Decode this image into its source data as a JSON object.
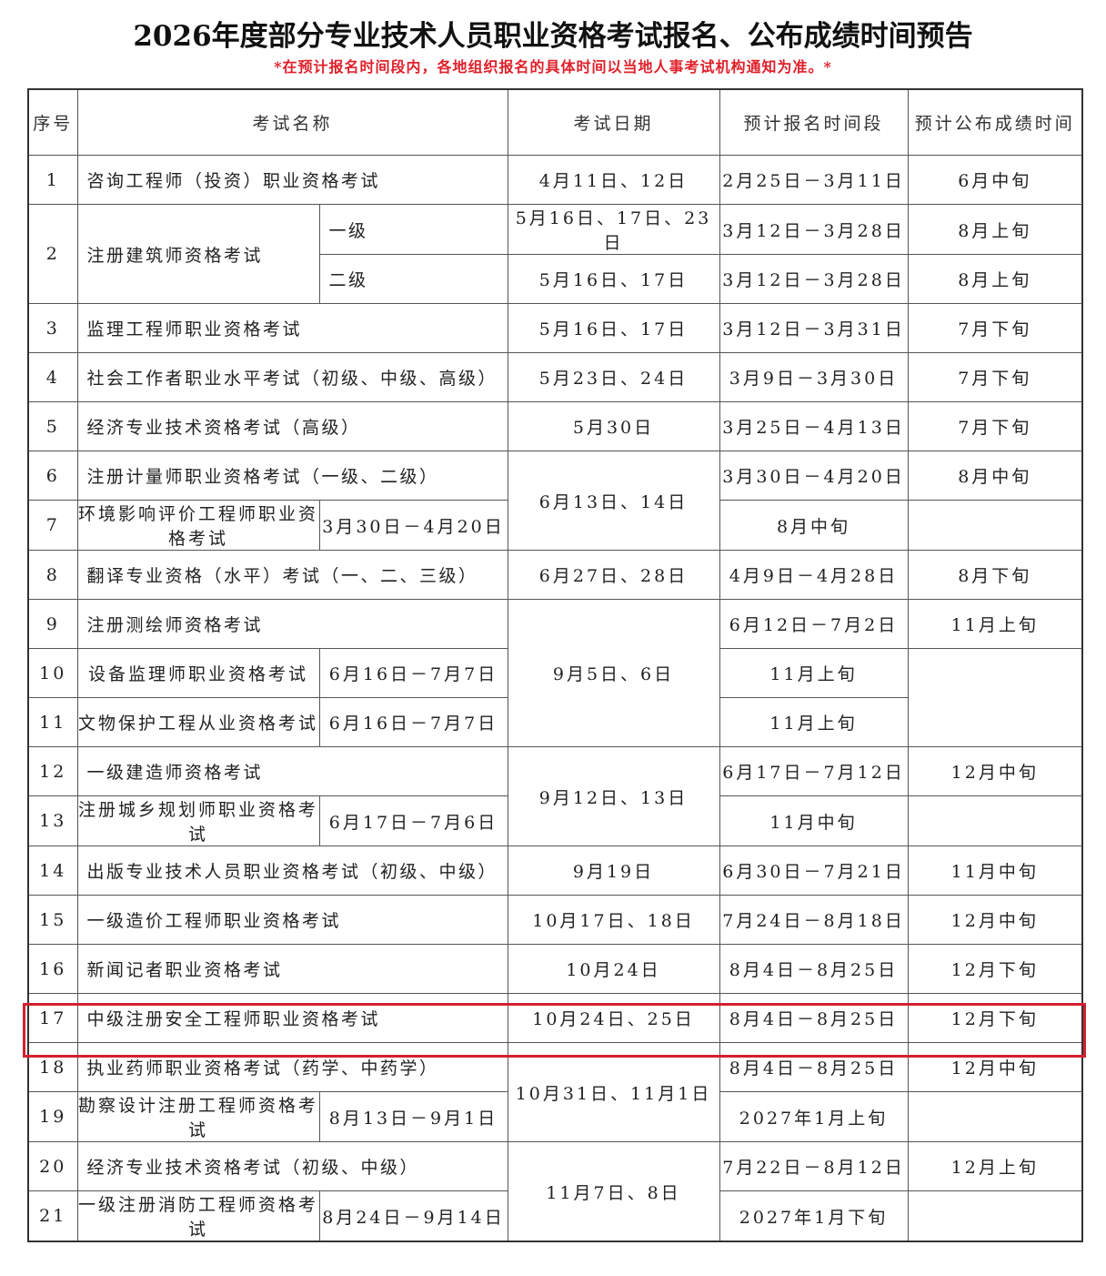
{
  "title": "2026年度部分专业技术人员职业资格考试报名、公布成绩时间预告",
  "note": "*在预计报名时间段内，各地组织报名的具体时间以当地人事考试机构通知为准。*",
  "table": {
    "headers": [
      "序号",
      "考试名称",
      "考试日期",
      "预计报名时间段",
      "预计公布成绩时间"
    ],
    "rows": [
      [
        "1",
        "咨询工程师（投资）职业资格考试",
        "4月11日、12日",
        "2月25日－3月11日",
        "6月中旬"
      ],
      [
        "2",
        "注册建筑师资格考试",
        "一级",
        "5月16日、17日、23日",
        "3月12日－3月28日",
        "8月上旬"
      ],
      [
        "二级",
        "5月16日、17日",
        "3月12日－3月28日",
        "8月上旬"
      ],
      [
        "3",
        "监理工程师职业资格考试",
        "5月16日、17日",
        "3月12日－3月31日",
        "7月下旬"
      ],
      [
        "4",
        "社会工作者职业水平考试（初级、中级、高级）",
        "5月23日、24日",
        "3月9日－3月30日",
        "7月下旬"
      ],
      [
        "5",
        "经济专业技术资格考试（高级）",
        "5月30日",
        "3月25日－4月13日",
        "7月下旬"
      ],
      [
        "6",
        "注册计量师职业资格考试（一级、二级）",
        "6月13日、14日",
        "3月30日－4月20日",
        "8月中旬"
      ],
      [
        "7",
        "环境影响评价工程师职业资格考试",
        "3月30日－4月20日",
        "8月中旬"
      ],
      [
        "8",
        "翻译专业资格（水平）考试（一、二、三级）",
        "6月27日、28日",
        "4月9日－4月28日",
        "8月下旬"
      ],
      [
        "9",
        "注册测绘师资格考试",
        "9月5日、6日",
        "6月12日－7月2日",
        "11月上旬"
      ],
      [
        "10",
        "设备监理师职业资格考试",
        "6月16日－7月7日",
        "11月上旬"
      ],
      [
        "11",
        "文物保护工程从业资格考试",
        "6月16日－7月7日",
        "11月上旬"
      ],
      [
        "12",
        "一级建造师资格考试",
        "9月12日、13日",
        "6月17日－7月12日",
        "12月中旬"
      ],
      [
        "13",
        "注册城乡规划师职业资格考试",
        "6月17日－7月6日",
        "11月中旬"
      ],
      [
        "14",
        "出版专业技术人员职业资格考试（初级、中级）",
        "9月19日",
        "6月30日－7月21日",
        "11月中旬"
      ],
      [
        "15",
        "一级造价工程师职业资格考试",
        "10月17日、18日",
        "7月24日－8月18日",
        "12月中旬"
      ],
      [
        "16",
        "新闻记者职业资格考试",
        "10月24日",
        "8月4日－8月25日",
        "12月下旬"
      ],
      [
        "17",
        "中级注册安全工程师职业资格考试",
        "10月24日、25日",
        "8月4日－8月25日",
        "12月下旬"
      ],
      [
        "18",
        "执业药师职业资格考试（药学、中药学）",
        "10月31日、11月1日",
        "8月4日－8月25日",
        "12月中旬"
      ],
      [
        "19",
        "勘察设计注册工程师资格考试",
        "8月13日－9月1日",
        "2027年1月上旬"
      ],
      [
        "20",
        "经济专业技术资格考试（初级、中级）",
        "11月7日、8日",
        "7月22日－8月12日",
        "12月上旬"
      ],
      [
        "21",
        "一级注册消防工程师资格考试",
        "8月24日－9月14日",
        "2027年1月下旬"
      ]
    ]
  }
}
